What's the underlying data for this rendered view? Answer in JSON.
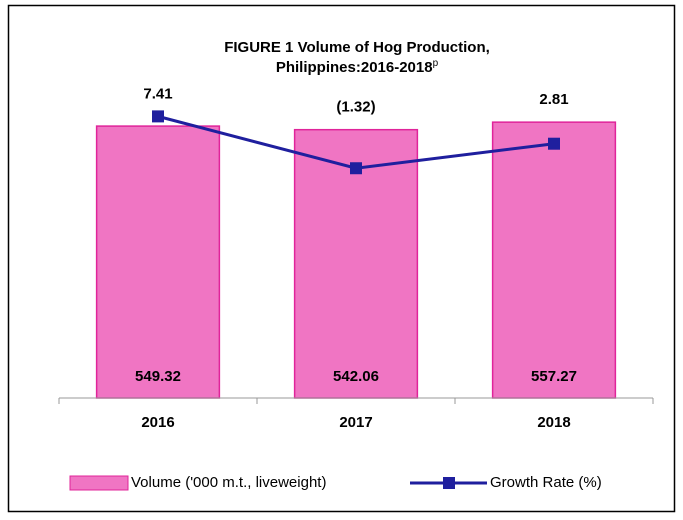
{
  "chart_data": {
    "type": "bar-line",
    "title": [
      "FIGURE 1 Volume of Hog Production,",
      "Philippines:2016-2018"
    ],
    "title_superscript": "p",
    "categories": [
      "2016",
      "2017",
      "2018"
    ],
    "series": [
      {
        "name": "Volume ('000 m.t., liveweight)",
        "type": "bar",
        "color": "#f075c3",
        "values": [
          549.32,
          542.06,
          557.27
        ]
      },
      {
        "name": "Growth Rate (%)",
        "type": "line",
        "axis": "y2",
        "color": "#1f1f9e",
        "values": [
          7.41,
          -1.32,
          2.81
        ],
        "value_labels": [
          "7.41",
          "(1.32)",
          "2.81"
        ]
      }
    ],
    "ylim": [
      0,
      600
    ],
    "y2lim": [
      -40,
      10
    ],
    "legend": "bottom"
  }
}
